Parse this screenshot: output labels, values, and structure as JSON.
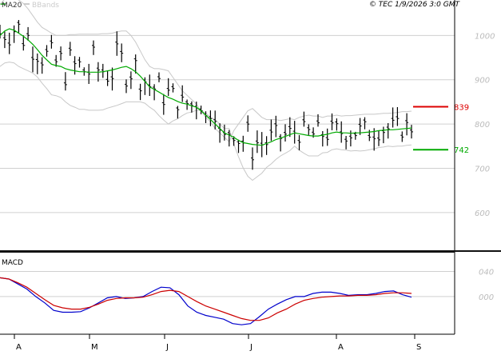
{
  "header": {
    "legend_ma": "MA20",
    "legend_bb": "BBands",
    "source": "© TEC 1/9/2026 3:0 GMT"
  },
  "chart_data": [
    {
      "type": "line",
      "panel": "price",
      "yticks": [
        "1000",
        "900",
        "800",
        "700",
        "600"
      ],
      "ylim": [
        515,
        1080
      ],
      "grid": true,
      "xticks": [
        "A",
        "M",
        "J",
        "J",
        "A",
        "S"
      ],
      "levels": [
        {
          "label": "839",
          "value": 839,
          "color": "#dd0000"
        },
        {
          "label": "742",
          "value": 742,
          "color": "#00aa00"
        }
      ],
      "series": [
        {
          "name": "MA20",
          "color": "#00aa00",
          "values": [
            1000,
            1010,
            1015,
            1012,
            1005,
            998,
            990,
            980,
            968,
            955,
            945,
            935,
            932,
            930,
            925,
            922,
            920,
            918,
            918,
            917,
            917,
            917,
            918,
            920,
            922,
            925,
            928,
            930,
            925,
            918,
            908,
            896,
            884,
            878,
            872,
            866,
            860,
            856,
            851,
            847,
            845,
            841,
            838,
            830,
            820,
            810,
            800,
            790,
            780,
            775,
            770,
            763,
            758,
            756,
            754,
            753,
            752,
            756,
            760,
            765,
            768,
            772,
            776,
            780,
            778,
            776,
            774,
            773,
            773,
            775,
            777,
            780,
            782,
            780,
            780,
            779,
            780,
            780,
            781,
            782,
            783,
            785,
            786,
            787,
            787,
            788,
            789,
            790,
            791
          ]
        },
        {
          "values": [
            1070,
            1082,
            1090,
            1085,
            1080,
            1072,
            1060,
            1045,
            1030,
            1018,
            1012,
            1005,
            1000,
            1000,
            1000,
            1002,
            1002,
            1003,
            1003,
            1003,
            1003,
            1003,
            1004,
            1004,
            1005,
            1008,
            1010,
            1010,
            1000,
            985,
            965,
            945,
            930,
            925,
            925,
            923,
            920,
            905,
            890,
            875,
            865,
            855,
            845,
            830,
            815,
            805,
            790,
            780,
            770,
            760,
            785,
            800,
            815,
            830,
            835,
            825,
            815,
            810,
            810,
            810,
            808,
            810,
            812,
            810,
            815,
            818,
            820,
            818,
            818,
            815,
            818,
            818,
            820,
            818,
            819,
            819,
            820,
            821,
            822,
            822,
            822,
            823,
            824,
            824,
            825,
            826,
            828,
            828,
            829
          ]
        },
        {
          "values": [
            930,
            938,
            940,
            938,
            930,
            925,
            920,
            915,
            906,
            892,
            880,
            866,
            864,
            860,
            850,
            842,
            838,
            833,
            833,
            831,
            831,
            831,
            832,
            836,
            839,
            842,
            846,
            850,
            850,
            850,
            850,
            847,
            838,
            831,
            819,
            809,
            800,
            807,
            812,
            819,
            825,
            827,
            831,
            830,
            825,
            815,
            810,
            800,
            790,
            790,
            755,
            726,
            701,
            682,
            673,
            681,
            689,
            702,
            710,
            720,
            728,
            734,
            740,
            750,
            741,
            734,
            728,
            728,
            728,
            735,
            736,
            742,
            744,
            742,
            741,
            739,
            740,
            739,
            740,
            742,
            744,
            747,
            748,
            750,
            749,
            750,
            750,
            752,
            753
          ]
        }
      ]
    },
    {
      "type": "line",
      "panel": "macd",
      "title": "MACD",
      "yticks": [
        "040",
        "000"
      ],
      "ylim": [
        -60,
        70
      ],
      "series": [
        {
          "color": "#0000cc",
          "values": [
            30,
            28,
            20,
            12,
            0,
            -10,
            -22,
            -25,
            -25,
            -24,
            -18,
            -10,
            -2,
            0,
            -3,
            -2,
            0,
            8,
            15,
            14,
            3,
            -15,
            -25,
            -30,
            -33,
            -36,
            -43,
            -45,
            -43,
            -32,
            -20,
            -12,
            -5,
            0,
            0,
            5,
            7,
            7,
            5,
            2,
            3,
            3,
            5,
            8,
            9,
            3,
            -1
          ]
        },
        {
          "color": "#cc0000",
          "values": [
            30,
            28,
            22,
            15,
            5,
            -5,
            -14,
            -18,
            -20,
            -20,
            -17,
            -12,
            -6,
            -3,
            -2,
            -2,
            -1,
            3,
            8,
            10,
            8,
            0,
            -8,
            -15,
            -20,
            -25,
            -30,
            -35,
            -38,
            -38,
            -34,
            -26,
            -20,
            -12,
            -6,
            -3,
            -1,
            0,
            1,
            1,
            2,
            2,
            3,
            5,
            6,
            6,
            5
          ]
        }
      ]
    }
  ]
}
